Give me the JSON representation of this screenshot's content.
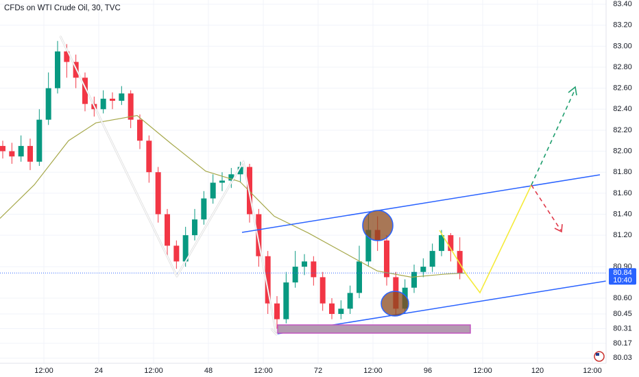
{
  "chart_data": {
    "type": "candlestick",
    "title": "CFDs on WTI Crude Oil, 30, TVC",
    "up_color": "#089981",
    "down_color": "#f23645",
    "xlim": [
      2.4,
      135
    ],
    "xticks": [
      {
        "value": 12,
        "label": "12:00"
      },
      24,
      {
        "value": 36,
        "label": "12:00"
      },
      48,
      {
        "value": 60,
        "label": "12:00"
      },
      72,
      {
        "value": 84,
        "label": "12:00"
      },
      96,
      {
        "value": 108,
        "label": "12:00"
      },
      120,
      {
        "value": 132,
        "label": "12:00"
      }
    ],
    "ylim": [
      79.98,
      83.44
    ],
    "yticks": [
      {
        "value": 83.4,
        "label": "83.40"
      },
      {
        "value": 83.2,
        "label": "83.20"
      },
      {
        "value": 83.0,
        "label": "83.00"
      },
      {
        "value": 82.8,
        "label": "82.80"
      },
      {
        "value": 82.6,
        "label": "82.60"
      },
      {
        "value": 82.4,
        "label": "82.40"
      },
      {
        "value": 82.2,
        "label": "82.20"
      },
      {
        "value": 82.0,
        "label": "82.00"
      },
      {
        "value": 81.8,
        "label": "81.80"
      },
      {
        "value": 81.6,
        "label": "81.60"
      },
      {
        "value": 81.4,
        "label": "81.40"
      },
      {
        "value": 81.2,
        "label": "81.20"
      },
      {
        "value": 80.9,
        "label": "80.90"
      },
      {
        "value": 80.6,
        "label": "80.60"
      },
      80.45,
      80.31,
      80.17,
      80.03
    ],
    "x": [
      3,
      5,
      7,
      9,
      11,
      13,
      15,
      17,
      19,
      21,
      23,
      25,
      27,
      29,
      31,
      33,
      35,
      37,
      39,
      41,
      43,
      45,
      47,
      49,
      51,
      53,
      55,
      57,
      59,
      61,
      63,
      65,
      67,
      69,
      71,
      73,
      75,
      77,
      79,
      81,
      83,
      85,
      87,
      89,
      91,
      93,
      95,
      97,
      99,
      101,
      103
    ],
    "open": [
      82.05,
      82.0,
      81.95,
      82.05,
      81.9,
      82.3,
      82.6,
      82.95,
      82.85,
      82.7,
      82.45,
      82.4,
      82.5,
      82.48,
      82.55,
      82.3,
      82.1,
      81.8,
      81.4,
      81.1,
      80.95,
      81.2,
      81.35,
      81.55,
      81.7,
      81.72,
      81.78,
      81.85,
      81.4,
      81.0,
      80.55,
      80.4,
      80.75,
      80.9,
      80.95,
      80.8,
      80.55,
      80.45,
      80.5,
      80.65,
      80.95,
      81.25,
      81.15,
      80.8,
      80.5,
      80.7,
      80.85,
      80.9,
      81.05,
      81.2,
      81.05
    ],
    "high": [
      82.1,
      82.08,
      82.15,
      82.12,
      82.4,
      82.75,
      83.05,
      83.02,
      82.92,
      82.75,
      82.52,
      82.58,
      82.56,
      82.62,
      82.58,
      82.35,
      82.15,
      81.85,
      81.45,
      81.15,
      81.28,
      81.45,
      81.62,
      81.78,
      81.8,
      81.84,
      81.9,
      81.88,
      81.45,
      81.05,
      80.62,
      80.85,
      81.05,
      81.02,
      81.0,
      80.85,
      80.6,
      80.58,
      80.72,
      81.1,
      81.4,
      81.38,
      81.2,
      80.85,
      80.78,
      80.92,
      80.98,
      81.12,
      81.25,
      81.22,
      81.18
    ],
    "low": [
      81.93,
      81.88,
      81.9,
      81.82,
      81.86,
      82.25,
      82.55,
      82.7,
      82.6,
      82.38,
      82.33,
      82.36,
      82.4,
      82.44,
      82.22,
      82.02,
      81.7,
      81.32,
      81.0,
      80.88,
      80.9,
      81.15,
      81.3,
      81.5,
      81.62,
      81.65,
      81.7,
      81.32,
      80.9,
      80.45,
      80.31,
      80.36,
      80.7,
      80.82,
      80.72,
      80.48,
      80.4,
      80.4,
      80.45,
      80.6,
      80.9,
      81.05,
      80.72,
      80.43,
      80.45,
      80.65,
      80.8,
      80.85,
      81.0,
      80.95,
      80.78
    ],
    "close": [
      82.0,
      81.95,
      82.05,
      81.9,
      82.3,
      82.6,
      82.95,
      82.85,
      82.7,
      82.45,
      82.4,
      82.5,
      82.48,
      82.55,
      82.3,
      82.1,
      81.8,
      81.4,
      81.1,
      80.95,
      81.2,
      81.35,
      81.55,
      81.7,
      81.72,
      81.78,
      81.85,
      81.4,
      81.0,
      80.55,
      80.4,
      80.75,
      80.9,
      80.95,
      80.8,
      80.55,
      80.45,
      80.5,
      80.65,
      80.95,
      81.25,
      81.15,
      80.8,
      80.5,
      80.7,
      80.85,
      80.9,
      81.05,
      81.2,
      81.05,
      80.84
    ],
    "moving_average": {
      "color": "#a6a84a",
      "x": [
        2.4,
        9.9,
        17.4,
        23.4,
        32.4,
        39.9,
        47.4,
        54.9,
        62.4,
        69.9,
        77.4,
        84.9,
        92.4,
        99.9,
        104.4
      ],
      "values": [
        81.36,
        81.68,
        82.1,
        82.27,
        82.34,
        82.07,
        81.81,
        81.71,
        81.38,
        81.22,
        81.04,
        80.86,
        80.8,
        80.83,
        80.84
      ]
    },
    "last_price": 80.84,
    "countdown": "10:40",
    "last_price_color": "#2962ff"
  }
}
